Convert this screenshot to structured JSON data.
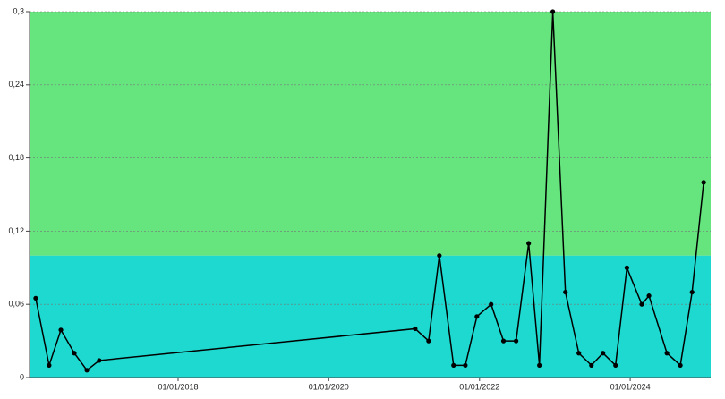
{
  "chart_data": {
    "type": "line",
    "x": [
      "2016-02-11",
      "2016-04-16",
      "2016-06-12",
      "2016-08-16",
      "2016-10-16",
      "2016-12-15",
      "2021-02-23",
      "2021-04-29",
      "2021-06-20",
      "2021-08-28",
      "2021-10-24",
      "2021-12-19",
      "2022-02-26",
      "2022-04-27",
      "2022-06-27",
      "2022-08-27",
      "2022-10-18",
      "2022-12-22",
      "2023-02-21",
      "2023-04-27",
      "2023-06-27",
      "2023-08-22",
      "2023-10-22",
      "2023-12-16",
      "2024-02-26",
      "2024-04-01",
      "2024-06-27",
      "2024-08-31",
      "2024-10-27",
      "2024-12-22"
    ],
    "series": [
      {
        "color": "#000000",
        "values": [
          0.065,
          0.01,
          0.039,
          0.02,
          0.006,
          0.014,
          0.04,
          0.03,
          0.1,
          0.01,
          0.01,
          0.05,
          0.06,
          0.03,
          0.03,
          0.11,
          0.01,
          0.3,
          0.07,
          0.02,
          0.01,
          0.02,
          0.01,
          0.09,
          0.06,
          0.067,
          0.02,
          0.01,
          0.07,
          0.16
        ]
      }
    ],
    "xlim": [
      "2016-01-12",
      "2025-01-25"
    ],
    "xticks": [
      {
        "value": "2018-01-01",
        "label": "01/01/2018"
      },
      {
        "value": "2020-01-01",
        "label": "01/01/2020"
      },
      {
        "value": "2022-01-01",
        "label": "01/01/2022"
      },
      {
        "value": "2024-01-01",
        "label": "01/01/2024"
      }
    ],
    "ylim": [
      0,
      0.3
    ],
    "yticks": [
      0,
      {
        "value": 0.06,
        "label": "0,06"
      },
      {
        "value": 0.12,
        "label": "0,12"
      },
      {
        "value": 0.18,
        "label": "0,18"
      },
      {
        "value": 0.24,
        "label": "0,24"
      },
      {
        "value": 0.3,
        "label": "0,3"
      }
    ],
    "bands": [
      {
        "from": 0,
        "to": 0.1,
        "color": "#1ed9cf"
      },
      {
        "from": 0.1,
        "to": 0.3,
        "color": "#66e57f"
      }
    ],
    "grid": true
  }
}
